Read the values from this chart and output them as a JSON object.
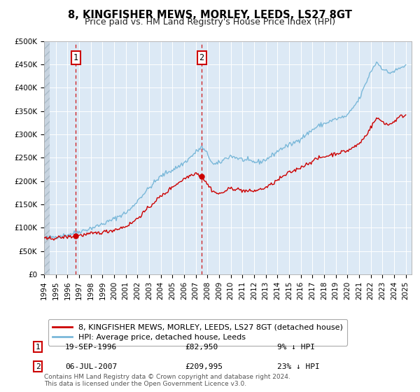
{
  "title": "8, KINGFISHER MEWS, MORLEY, LEEDS, LS27 8GT",
  "subtitle": "Price paid vs. HM Land Registry's House Price Index (HPI)",
  "background_color": "#ffffff",
  "plot_bg_color": "#dce9f5",
  "grid_color": "#ffffff",
  "hatch_color": "#c8d8e8",
  "ylim": [
    0,
    500000
  ],
  "yticks": [
    0,
    50000,
    100000,
    150000,
    200000,
    250000,
    300000,
    350000,
    400000,
    450000,
    500000
  ],
  "ytick_labels": [
    "£0",
    "£50K",
    "£100K",
    "£150K",
    "£200K",
    "£250K",
    "£300K",
    "£350K",
    "£400K",
    "£450K",
    "£500K"
  ],
  "xlim_start": 1994.0,
  "xlim_end": 2025.5,
  "xticks": [
    1994,
    1995,
    1996,
    1997,
    1998,
    1999,
    2000,
    2001,
    2002,
    2003,
    2004,
    2005,
    2006,
    2007,
    2008,
    2009,
    2010,
    2011,
    2012,
    2013,
    2014,
    2015,
    2016,
    2017,
    2018,
    2019,
    2020,
    2021,
    2022,
    2023,
    2024,
    2025
  ],
  "hpi_color": "#7ab8d9",
  "property_color": "#cc0000",
  "marker_color": "#cc0000",
  "sale1_x": 1996.72,
  "sale1_y": 82950,
  "sale1_label": "1",
  "sale1_date": "19-SEP-1996",
  "sale1_price": "£82,950",
  "sale1_hpi": "9% ↓ HPI",
  "sale2_x": 2007.51,
  "sale2_y": 209995,
  "sale2_label": "2",
  "sale2_date": "06-JUL-2007",
  "sale2_price": "£209,995",
  "sale2_hpi": "23% ↓ HPI",
  "vline_color": "#cc0000",
  "legend_label1": "8, KINGFISHER MEWS, MORLEY, LEEDS, LS27 8GT (detached house)",
  "legend_label2": "HPI: Average price, detached house, Leeds",
  "footer": "Contains HM Land Registry data © Crown copyright and database right 2024.\nThis data is licensed under the Open Government Licence v3.0.",
  "title_fontsize": 10.5,
  "subtitle_fontsize": 9,
  "tick_fontsize": 7.5,
  "legend_fontsize": 8,
  "footer_fontsize": 6.5
}
